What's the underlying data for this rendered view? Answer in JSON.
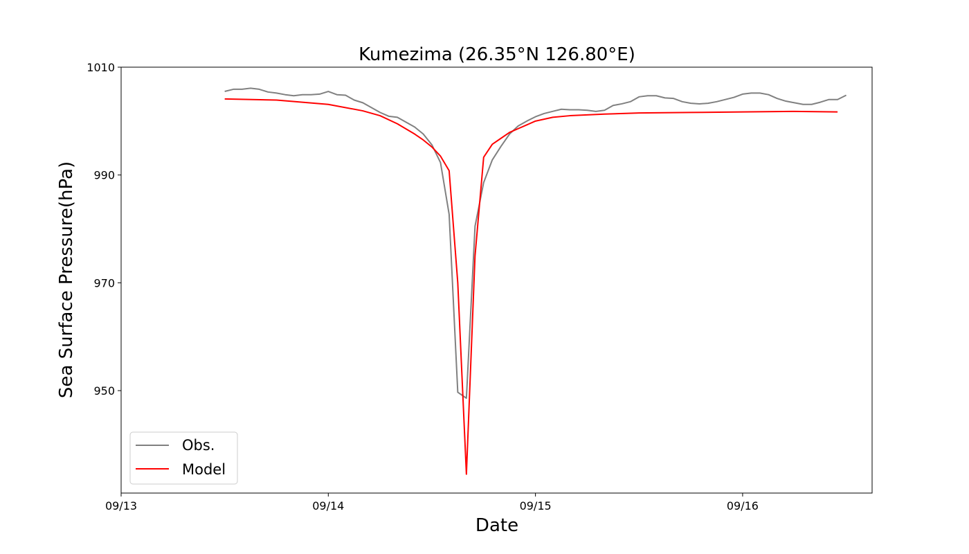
{
  "chart_data": {
    "type": "line",
    "title": "Kumezima (26.35°N 126.80°E)",
    "xlabel": "Date",
    "ylabel": "Sea Surface Pressure(hPa)",
    "xlim": [
      "09/13 00:00",
      "09/16 15:00"
    ],
    "ylim": [
      931,
      1010
    ],
    "x_ticks": [
      "09/13",
      "09/14",
      "09/15",
      "09/16"
    ],
    "y_ticks": [
      950,
      970,
      990,
      1010
    ],
    "grid": false,
    "legend_position": "lower-left",
    "colors": {
      "obs": "#808080",
      "model": "#ff0000"
    },
    "series": [
      {
        "name": "Obs.",
        "color": "#808080",
        "points": [
          [
            "09/13 12:00",
            1005.5
          ],
          [
            "09/13 13:00",
            1005.9
          ],
          [
            "09/13 14:00",
            1005.9
          ],
          [
            "09/13 15:00",
            1006.1
          ],
          [
            "09/13 16:00",
            1005.9
          ],
          [
            "09/13 17:00",
            1005.4
          ],
          [
            "09/13 18:00",
            1005.2
          ],
          [
            "09/13 19:00",
            1004.9
          ],
          [
            "09/13 20:00",
            1004.7
          ],
          [
            "09/13 21:00",
            1004.9
          ],
          [
            "09/13 22:00",
            1004.9
          ],
          [
            "09/13 23:00",
            1005.0
          ],
          [
            "09/14 00:00",
            1005.5
          ],
          [
            "09/14 01:00",
            1004.9
          ],
          [
            "09/14 02:00",
            1004.8
          ],
          [
            "09/14 03:00",
            1003.9
          ],
          [
            "09/14 04:00",
            1003.4
          ],
          [
            "09/14 05:00",
            1002.5
          ],
          [
            "09/14 06:00",
            1001.6
          ],
          [
            "09/14 07:00",
            1000.9
          ],
          [
            "09/14 08:00",
            1000.7
          ],
          [
            "09/14 09:00",
            999.8
          ],
          [
            "09/14 10:00",
            998.9
          ],
          [
            "09/14 11:00",
            997.6
          ],
          [
            "09/14 12:00",
            995.6
          ],
          [
            "09/14 13:00",
            992.3
          ],
          [
            "09/14 14:00",
            982.7
          ],
          [
            "09/14 15:00",
            949.7
          ],
          [
            "09/14 16:00",
            948.6
          ],
          [
            "09/14 17:00",
            980.5
          ],
          [
            "09/14 18:00",
            988.6
          ],
          [
            "09/14 19:00",
            992.8
          ],
          [
            "09/14 20:00",
            995.3
          ],
          [
            "09/14 21:00",
            997.6
          ],
          [
            "09/14 22:00",
            999.1
          ],
          [
            "09/14 23:00",
            1000.0
          ],
          [
            "09/15 00:00",
            1000.8
          ],
          [
            "09/15 01:00",
            1001.4
          ],
          [
            "09/15 02:00",
            1001.8
          ],
          [
            "09/15 03:00",
            1002.2
          ],
          [
            "09/15 04:00",
            1002.1
          ],
          [
            "09/15 05:00",
            1002.1
          ],
          [
            "09/15 06:00",
            1002.0
          ],
          [
            "09/15 07:00",
            1001.8
          ],
          [
            "09/15 08:00",
            1002.0
          ],
          [
            "09/15 09:00",
            1002.9
          ],
          [
            "09/15 10:00",
            1003.2
          ],
          [
            "09/15 11:00",
            1003.6
          ],
          [
            "09/15 12:00",
            1004.5
          ],
          [
            "09/15 13:00",
            1004.7
          ],
          [
            "09/15 14:00",
            1004.7
          ],
          [
            "09/15 15:00",
            1004.3
          ],
          [
            "09/15 16:00",
            1004.2
          ],
          [
            "09/15 17:00",
            1003.6
          ],
          [
            "09/15 18:00",
            1003.3
          ],
          [
            "09/15 19:00",
            1003.2
          ],
          [
            "09/15 20:00",
            1003.3
          ],
          [
            "09/15 21:00",
            1003.6
          ],
          [
            "09/15 22:00",
            1004.0
          ],
          [
            "09/15 23:00",
            1004.4
          ],
          [
            "09/16 00:00",
            1005.0
          ],
          [
            "09/16 01:00",
            1005.2
          ],
          [
            "09/16 02:00",
            1005.2
          ],
          [
            "09/16 03:00",
            1004.9
          ],
          [
            "09/16 04:00",
            1004.2
          ],
          [
            "09/16 05:00",
            1003.7
          ],
          [
            "09/16 06:00",
            1003.4
          ],
          [
            "09/16 07:00",
            1003.1
          ],
          [
            "09/16 08:00",
            1003.1
          ],
          [
            "09/16 09:00",
            1003.5
          ],
          [
            "09/16 10:00",
            1004.0
          ],
          [
            "09/16 11:00",
            1004.0
          ],
          [
            "09/16 12:00",
            1004.8
          ]
        ]
      },
      {
        "name": "Model",
        "color": "#ff0000",
        "points": [
          [
            "09/13 12:00",
            1004.1
          ],
          [
            "09/13 18:00",
            1003.9
          ],
          [
            "09/14 00:00",
            1003.1
          ],
          [
            "09/14 04:00",
            1001.9
          ],
          [
            "09/14 06:00",
            1001.0
          ],
          [
            "09/14 08:00",
            999.5
          ],
          [
            "09/14 10:00",
            997.6
          ],
          [
            "09/14 11:00",
            996.5
          ],
          [
            "09/14 12:00",
            995.2
          ],
          [
            "09/14 13:00",
            993.5
          ],
          [
            "09/14 14:00",
            990.8
          ],
          [
            "09/14 15:00",
            970.0
          ],
          [
            "09/14 16:00",
            934.5
          ],
          [
            "09/14 17:00",
            975.0
          ],
          [
            "09/14 18:00",
            993.3
          ],
          [
            "09/14 19:00",
            995.7
          ],
          [
            "09/14 20:00",
            996.8
          ],
          [
            "09/14 21:00",
            997.9
          ],
          [
            "09/14 22:00",
            998.6
          ],
          [
            "09/15 00:00",
            1000.0
          ],
          [
            "09/15 02:00",
            1000.7
          ],
          [
            "09/15 04:00",
            1001.0
          ],
          [
            "09/15 08:00",
            1001.3
          ],
          [
            "09/15 12:00",
            1001.5
          ],
          [
            "09/15 18:00",
            1001.6
          ],
          [
            "09/16 00:00",
            1001.7
          ],
          [
            "09/16 06:00",
            1001.8
          ],
          [
            "09/16 11:00",
            1001.7
          ]
        ]
      }
    ]
  }
}
